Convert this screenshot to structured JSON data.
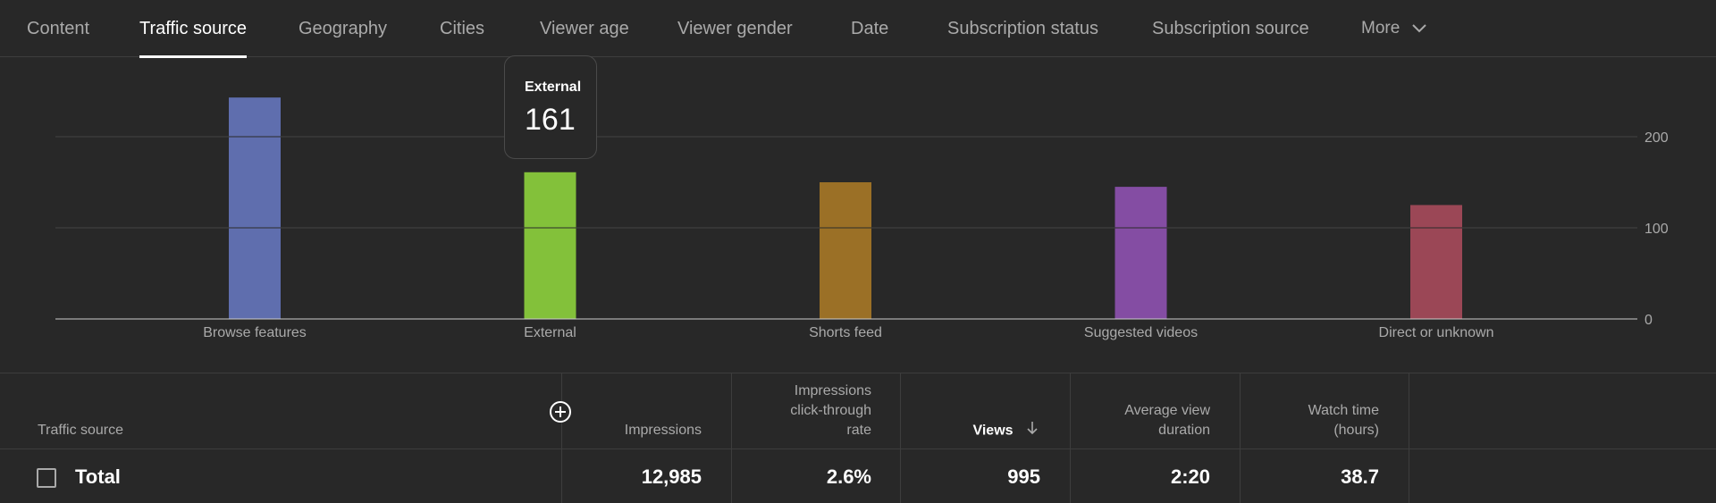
{
  "tabs": {
    "items": [
      {
        "label": "Content",
        "active": false
      },
      {
        "label": "Traffic source",
        "active": true
      },
      {
        "label": "Geography",
        "active": false
      },
      {
        "label": "Cities",
        "active": false
      },
      {
        "label": "Viewer age",
        "active": false
      },
      {
        "label": "Viewer gender",
        "active": false
      },
      {
        "label": "Date",
        "active": false
      },
      {
        "label": "Subscription status",
        "active": false
      },
      {
        "label": "Subscription source",
        "active": false
      }
    ],
    "more_label": "More",
    "more_icon": "chevron-down-icon"
  },
  "chart_data": {
    "type": "bar",
    "categories": [
      "Browse features",
      "External",
      "Shorts feed",
      "Suggested videos",
      "Direct or unknown"
    ],
    "values": [
      243,
      161,
      150,
      145,
      125
    ],
    "colors": [
      "#5f6eae",
      "#83c13a",
      "#9b7026",
      "#844da3",
      "#9b4756"
    ],
    "ylim": [
      0,
      250
    ],
    "yticks": [
      0,
      100,
      200
    ],
    "y_axis_side": "right",
    "grid": true
  },
  "tooltip": {
    "label": "External",
    "value": "161"
  },
  "table": {
    "add_column_icon": "plus-circle-icon",
    "sort_icon": "arrow-down-icon",
    "headers": {
      "traffic_source": "Traffic source",
      "impressions": "Impressions",
      "ctr_line1": "Impressions",
      "ctr_line2": "click-through",
      "ctr_line3": "rate",
      "views": "Views",
      "avd_line1": "Average view",
      "avd_line2": "duration",
      "watch_line1": "Watch time",
      "watch_line2": "(hours)"
    },
    "total_row": {
      "label": "Total",
      "impressions": "12,985",
      "ctr": "2.6%",
      "views": "995",
      "avg_view_duration": "2:20",
      "watch_time": "38.7"
    }
  }
}
